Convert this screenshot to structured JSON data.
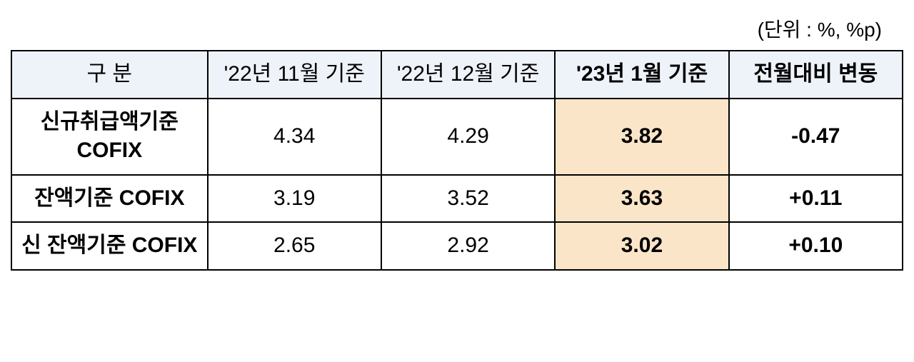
{
  "unit_label": "(단위 : %, %p)",
  "colors": {
    "header_bg": "#eef2f9",
    "highlight_bg": "#fbe5c8",
    "border": "#000000",
    "text": "#000000",
    "background": "#ffffff"
  },
  "typography": {
    "cell_fontsize": 30,
    "unit_fontsize": 28,
    "font_family": "Malgun Gothic"
  },
  "table": {
    "headers": {
      "category": "구 분",
      "col_nov22": "'22년 11월 기준",
      "col_dec22": "'22년 12월 기준",
      "col_jan23": "'23년 1월 기준",
      "col_change": "전월대비 변동"
    },
    "header_bold": {
      "category": false,
      "col_nov22": false,
      "col_dec22": false,
      "col_jan23": true,
      "col_change": true
    },
    "rows": [
      {
        "label": "신규취급액기준 COFIX",
        "nov22": "4.34",
        "dec22": "4.29",
        "jan23": "3.82",
        "change": "-0.47"
      },
      {
        "label": "잔액기준 COFIX",
        "nov22": "3.19",
        "dec22": "3.52",
        "jan23": "3.63",
        "change": "+0.11"
      },
      {
        "label": "신 잔액기준 COFIX",
        "nov22": "2.65",
        "dec22": "2.92",
        "jan23": "3.02",
        "change": "+0.10"
      }
    ]
  }
}
